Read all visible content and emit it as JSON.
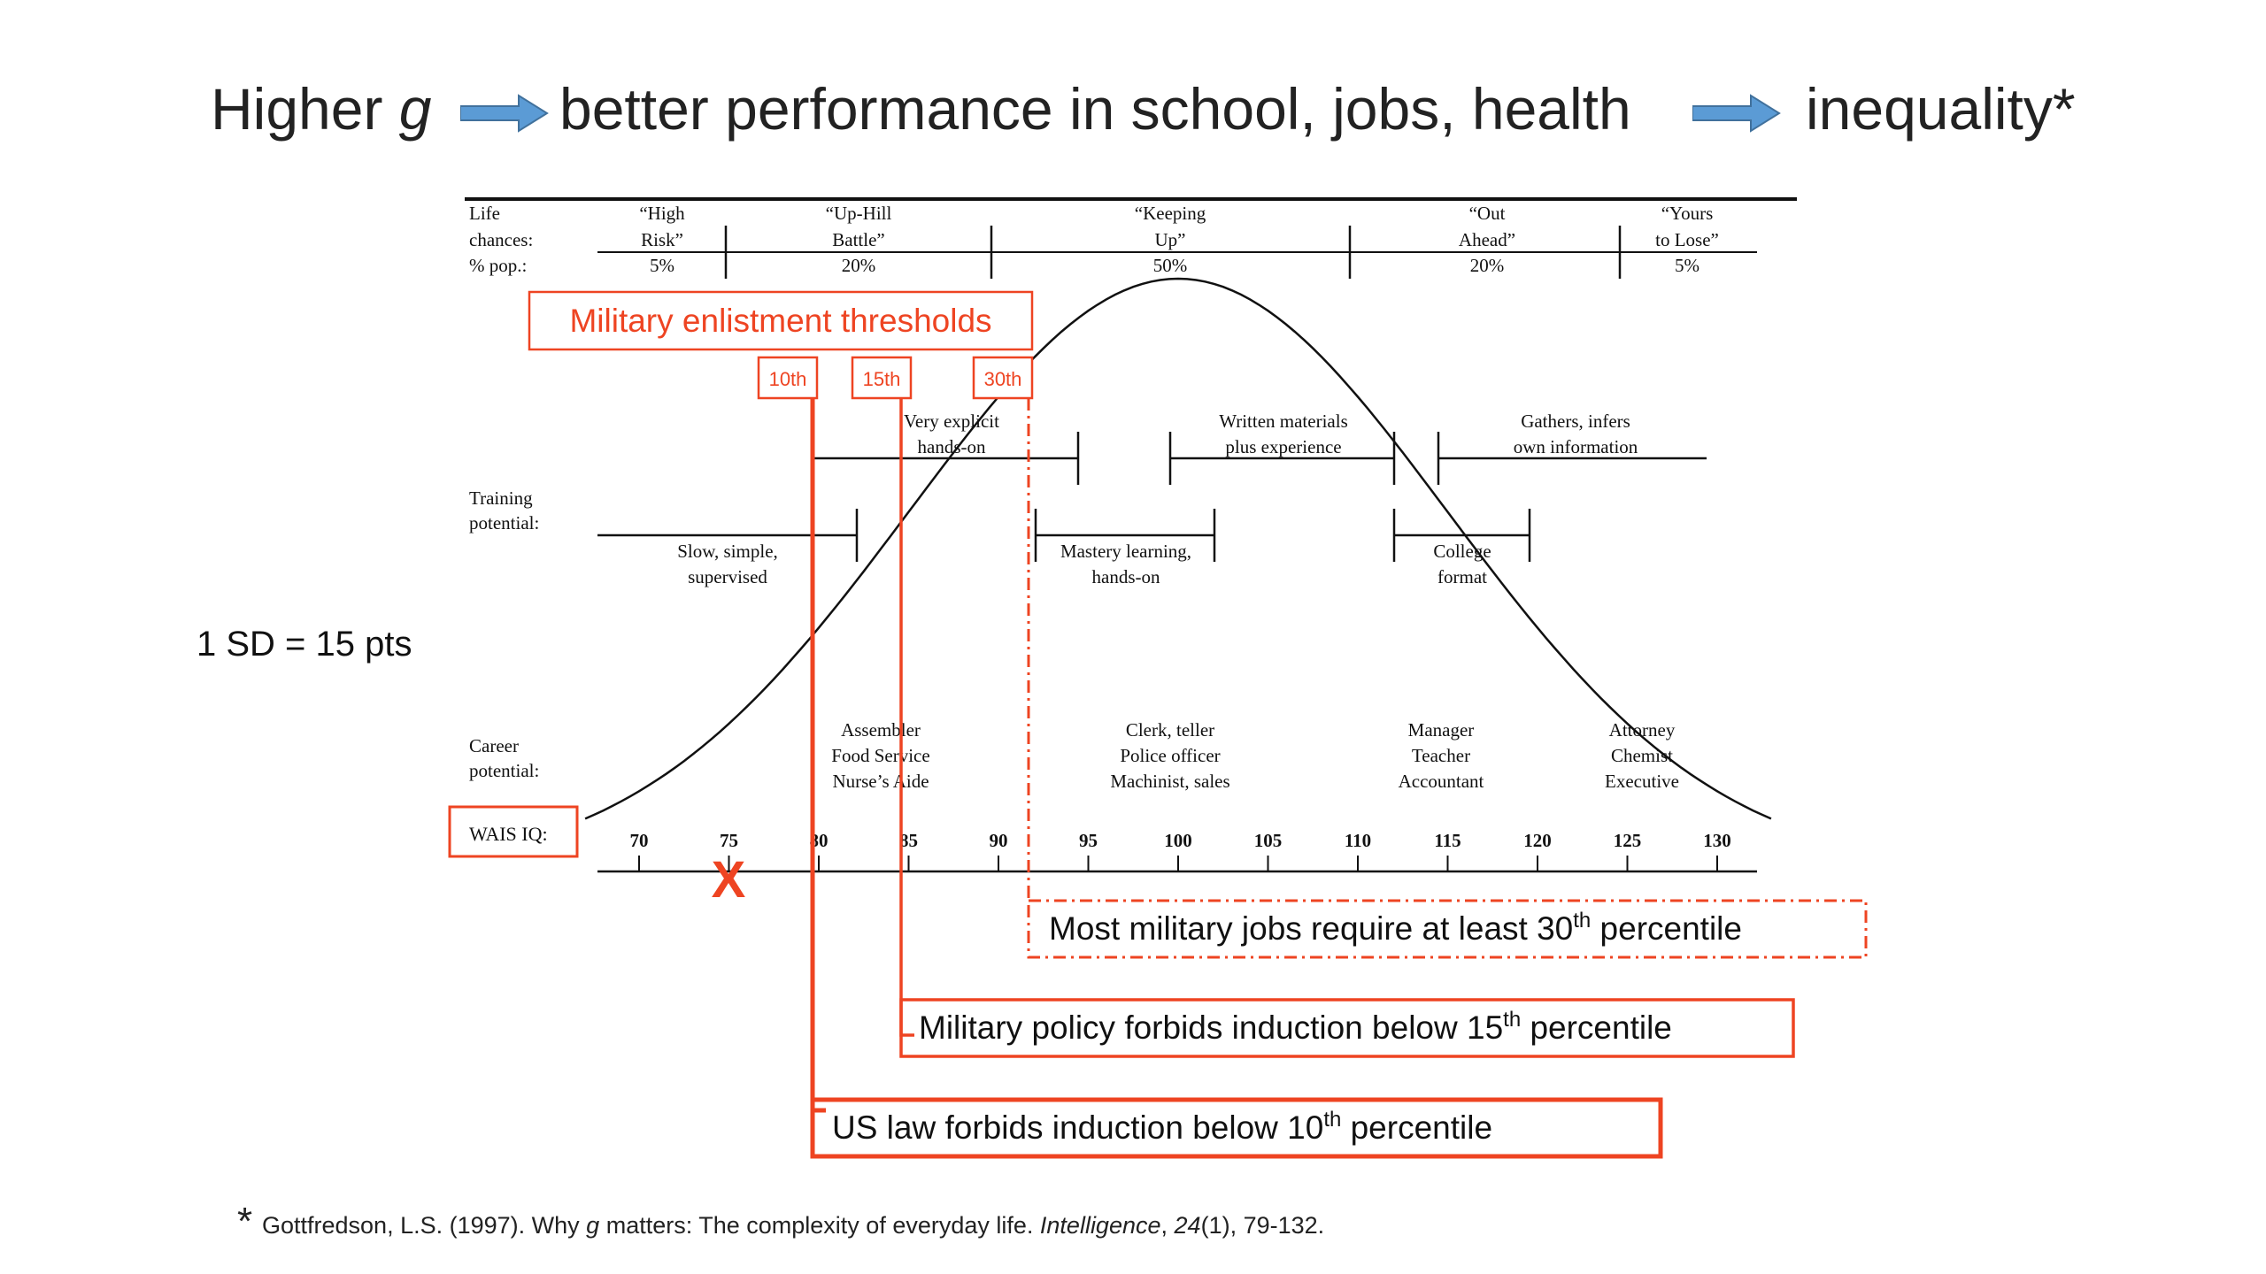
{
  "title": {
    "part1_prefix": "Higher ",
    "part1_var": "g",
    "part2": "better performance in school, jobs, health",
    "part3": "inequality*"
  },
  "sd_note": "1 SD = 15 pts",
  "colors": {
    "accent": "#EE4422",
    "arrow": "#5B9BD5",
    "text": "#222222"
  },
  "figure": {
    "life_chances_label": [
      "Life",
      "chances:",
      "% pop.:"
    ],
    "life_chances": [
      {
        "lines": [
          "“High",
          "Risk”",
          "5%"
        ]
      },
      {
        "lines": [
          "“Up-Hill",
          "Battle”",
          "20%"
        ]
      },
      {
        "lines": [
          "“Keeping",
          "Up”",
          "50%"
        ]
      },
      {
        "lines": [
          "“Out",
          "Ahead”",
          "20%"
        ]
      },
      {
        "lines": [
          "“Yours",
          "to Lose”",
          "5%"
        ]
      }
    ],
    "training_label": [
      "Training",
      "potential:"
    ],
    "training_upper": [
      {
        "lines": [
          "Very explicit",
          "hands-on"
        ]
      },
      {
        "lines": [
          "Written materials",
          "plus experience"
        ]
      },
      {
        "lines": [
          "Gathers, infers",
          "own information"
        ]
      }
    ],
    "training_lower": [
      {
        "lines": [
          "Slow, simple,",
          "supervised"
        ]
      },
      {
        "lines": [
          "Mastery learning,",
          "hands-on"
        ]
      },
      {
        "lines": [
          "College",
          "format"
        ]
      }
    ],
    "career_label": [
      "Career",
      "potential:"
    ],
    "careers": [
      {
        "lines": [
          "Assembler",
          "Food Service",
          "Nurse’s Aide"
        ]
      },
      {
        "lines": [
          "Clerk, teller",
          "Police officer",
          "Machinist, sales"
        ]
      },
      {
        "lines": [
          "Manager",
          "Teacher",
          "Accountant"
        ]
      },
      {
        "lines": [
          "Attorney",
          "Chemist",
          "Executive"
        ]
      }
    ],
    "iq_axis_label": "WAIS IQ:",
    "iq_ticks": [
      "70",
      "75",
      "80",
      "85",
      "90",
      "95",
      "100",
      "105",
      "110",
      "115",
      "120",
      "125",
      "130"
    ],
    "marker": "X"
  },
  "annotations": {
    "enlistment_title": "Military enlistment thresholds",
    "p10": "10th",
    "p15": "15th",
    "p30": "30th",
    "box30_pre": "Most military jobs require at least 30",
    "box30_sup": "th",
    "box30_post": " percentile",
    "box15_pre": "Military policy forbids induction below 15",
    "box15_sup": "th",
    "box15_post": " percentile",
    "box10_pre": "US law forbids induction below 10",
    "box10_sup": "th",
    "box10_post": " percentile"
  },
  "footnote": {
    "star": "*",
    "pre": "Gottfredson, L.S. (1997). Why ",
    "g": "g",
    "mid": " matters: The complexity of everyday life. ",
    "journal": "Intelligence",
    "sep": ", ",
    "volume": "24",
    "post": "(1), 79-132."
  }
}
